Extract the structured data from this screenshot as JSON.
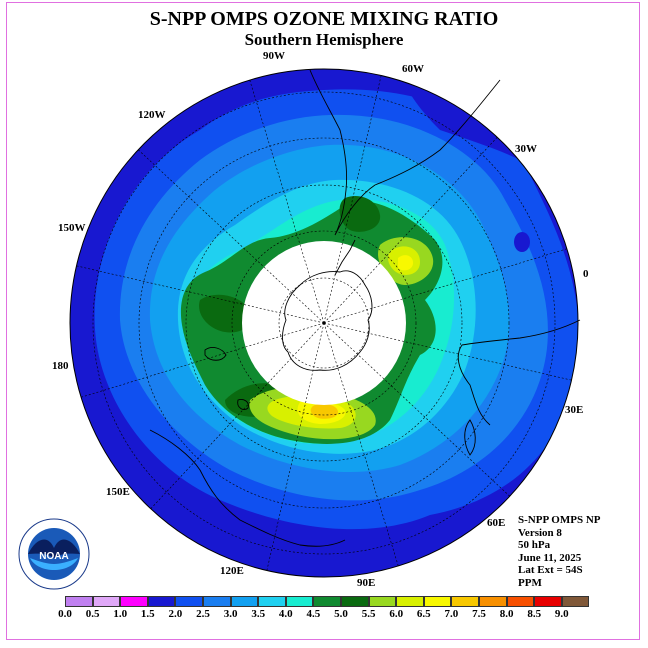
{
  "title": "S-NPP OMPS OZONE MIXING RATIO",
  "subtitle": "Southern Hemisphere",
  "longitude_labels": [
    "90W",
    "60W",
    "30W",
    "0",
    "30E",
    "60E",
    "90E",
    "120E",
    "150E",
    "180",
    "150W",
    "120W"
  ],
  "info_lines": [
    "S-NPP OMPS NP",
    "Version 8",
    "50 hPa",
    "June 11, 2025",
    "Lat Ext = 54S",
    "PPM"
  ],
  "colorbar": {
    "ticks": [
      "0.0",
      "0.5",
      "1.0",
      "1.5",
      "2.0",
      "2.5",
      "3.0",
      "3.5",
      "4.0",
      "4.5",
      "5.0",
      "5.5",
      "6.0",
      "6.5",
      "7.0",
      "7.5",
      "8.0",
      "8.5",
      "9.0"
    ],
    "colors": [
      "#c080f0",
      "#e0a8f8",
      "#ff00ff",
      "#1818d0",
      "#1050f0",
      "#1a7ef0",
      "#12a0f0",
      "#20d0f0",
      "#18ecd0",
      "#108a30",
      "#0a6a10",
      "#98d820",
      "#d8f000",
      "#f8f800",
      "#f8c800",
      "#f89000",
      "#f85000",
      "#e80000",
      "#805838"
    ]
  },
  "logo_text": "NOAA",
  "logo_ring_text": "NATIONAL OCEANIC AND ATMOSPHERIC ADMINISTRATION · U.S. DEPARTMENT OF COMMERCE"
}
